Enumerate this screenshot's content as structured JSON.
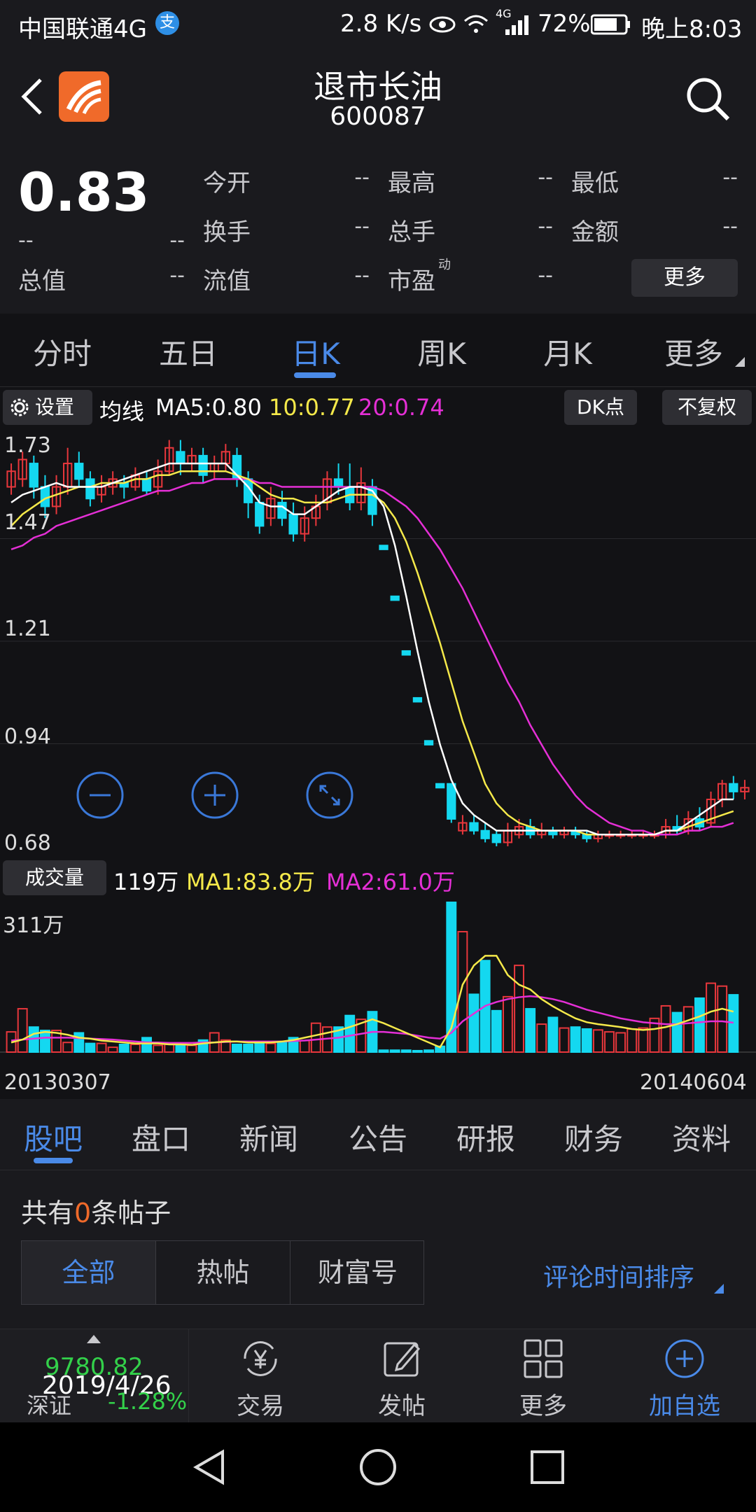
{
  "status_bar": {
    "carrier": "中国联通4G",
    "speed": "2.8 K/s",
    "network": "4G",
    "battery": "72%",
    "time": "晚上8:03"
  },
  "header": {
    "title": "退市长油",
    "code": "600087"
  },
  "quote": {
    "price": "0.83",
    "change": "--",
    "change_pct": "--",
    "total_value_label": "总值",
    "total_value": "--",
    "fields": [
      {
        "label": "今开",
        "value": "--"
      },
      {
        "label": "最高",
        "value": "--"
      },
      {
        "label": "最低",
        "value": "--"
      },
      {
        "label": "换手",
        "value": "--"
      },
      {
        "label": "总手",
        "value": "--"
      },
      {
        "label": "金额",
        "value": "--"
      },
      {
        "label": "流值",
        "value": "--"
      },
      {
        "label": "市盈",
        "value": "--",
        "superscript": "动"
      }
    ],
    "more_button": "更多"
  },
  "chart_tabs": {
    "items": [
      "分时",
      "五日",
      "日K",
      "周K",
      "月K",
      "更多"
    ],
    "active": "日K"
  },
  "ma_bar": {
    "settings": "设置",
    "label": "均线",
    "ma5": "MA5:0.80",
    "ma10": "10:0.77",
    "ma20": "20:0.74",
    "dk_button": "DK点",
    "fq_button": "不复权"
  },
  "volume_bar": {
    "label": "成交量",
    "vol": "119万",
    "ma1": "MA1:83.8万",
    "ma2": "MA2:61.0万"
  },
  "colors": {
    "up": "#e8373c",
    "down": "#14d8f0",
    "ma5": "#ffffff",
    "ma10": "#f5e94a",
    "ma20": "#e52fd6",
    "accent": "#4a8ae8"
  },
  "chart_data": {
    "type": "candlestick",
    "y_ticks": [
      "1.73",
      "1.47",
      "1.21",
      "0.94",
      "0.68"
    ],
    "ylim": [
      0.68,
      1.73
    ],
    "volume_max_label": "311万",
    "x_start": "20130307",
    "x_end": "20140604",
    "candles": [
      [
        1.6,
        1.64,
        1.58,
        1.66
      ],
      [
        1.62,
        1.67,
        1.6,
        1.69
      ],
      [
        1.66,
        1.6,
        1.57,
        1.68
      ],
      [
        1.6,
        1.55,
        1.52,
        1.63
      ],
      [
        1.55,
        1.6,
        1.53,
        1.63
      ],
      [
        1.6,
        1.66,
        1.58,
        1.7
      ],
      [
        1.66,
        1.62,
        1.6,
        1.69
      ],
      [
        1.62,
        1.57,
        1.55,
        1.64
      ],
      [
        1.58,
        1.6,
        1.56,
        1.63
      ],
      [
        1.6,
        1.62,
        1.58,
        1.64
      ],
      [
        1.61,
        1.6,
        1.57,
        1.63
      ],
      [
        1.6,
        1.63,
        1.59,
        1.65
      ],
      [
        1.62,
        1.59,
        1.58,
        1.64
      ],
      [
        1.6,
        1.64,
        1.58,
        1.67
      ],
      [
        1.64,
        1.7,
        1.63,
        1.72
      ],
      [
        1.69,
        1.66,
        1.63,
        1.72
      ],
      [
        1.66,
        1.68,
        1.64,
        1.7
      ],
      [
        1.68,
        1.63,
        1.61,
        1.7
      ],
      [
        1.64,
        1.66,
        1.62,
        1.68
      ],
      [
        1.66,
        1.69,
        1.64,
        1.71
      ],
      [
        1.68,
        1.62,
        1.6,
        1.7
      ],
      [
        1.62,
        1.56,
        1.52,
        1.64
      ],
      [
        1.56,
        1.5,
        1.48,
        1.58
      ],
      [
        1.52,
        1.57,
        1.5,
        1.6
      ],
      [
        1.56,
        1.52,
        1.5,
        1.59
      ],
      [
        1.53,
        1.48,
        1.46,
        1.56
      ],
      [
        1.48,
        1.52,
        1.46,
        1.55
      ],
      [
        1.52,
        1.55,
        1.5,
        1.58
      ],
      [
        1.56,
        1.62,
        1.54,
        1.64
      ],
      [
        1.62,
        1.6,
        1.58,
        1.66
      ],
      [
        1.6,
        1.56,
        1.54,
        1.66
      ],
      [
        1.56,
        1.61,
        1.54,
        1.65
      ],
      [
        1.6,
        1.53,
        1.5,
        1.62
      ],
      [
        1.45,
        1.44,
        1.44,
        1.45
      ],
      [
        1.32,
        1.31,
        1.31,
        1.32
      ],
      [
        1.18,
        1.17,
        1.17,
        1.18
      ],
      [
        1.06,
        1.05,
        1.05,
        1.06
      ],
      [
        0.95,
        0.94,
        0.94,
        0.95
      ],
      [
        0.84,
        0.83,
        0.83,
        0.84
      ],
      [
        0.84,
        0.75,
        0.74,
        0.84
      ],
      [
        0.72,
        0.74,
        0.71,
        0.76
      ],
      [
        0.74,
        0.72,
        0.71,
        0.76
      ],
      [
        0.72,
        0.7,
        0.69,
        0.74
      ],
      [
        0.71,
        0.69,
        0.68,
        0.72
      ],
      [
        0.69,
        0.72,
        0.68,
        0.74
      ],
      [
        0.71,
        0.73,
        0.7,
        0.75
      ],
      [
        0.73,
        0.71,
        0.7,
        0.75
      ],
      [
        0.71,
        0.72,
        0.7,
        0.74
      ],
      [
        0.72,
        0.71,
        0.7,
        0.73
      ],
      [
        0.71,
        0.72,
        0.7,
        0.73
      ],
      [
        0.72,
        0.71,
        0.7,
        0.73
      ],
      [
        0.71,
        0.7,
        0.69,
        0.72
      ],
      [
        0.7,
        0.71,
        0.69,
        0.72
      ],
      [
        0.71,
        0.71,
        0.7,
        0.72
      ],
      [
        0.71,
        0.71,
        0.7,
        0.72
      ],
      [
        0.71,
        0.71,
        0.7,
        0.72
      ],
      [
        0.71,
        0.71,
        0.7,
        0.72
      ],
      [
        0.71,
        0.71,
        0.7,
        0.72
      ],
      [
        0.71,
        0.73,
        0.7,
        0.75
      ],
      [
        0.73,
        0.72,
        0.71,
        0.76
      ],
      [
        0.72,
        0.75,
        0.71,
        0.77
      ],
      [
        0.75,
        0.73,
        0.72,
        0.78
      ],
      [
        0.74,
        0.8,
        0.73,
        0.82
      ],
      [
        0.8,
        0.84,
        0.78,
        0.85
      ],
      [
        0.84,
        0.82,
        0.8,
        0.86
      ],
      [
        0.82,
        0.83,
        0.8,
        0.85
      ]
    ],
    "volume": [
      42,
      90,
      52,
      45,
      45,
      20,
      40,
      18,
      18,
      10,
      16,
      16,
      30,
      14,
      16,
      16,
      14,
      25,
      40,
      25,
      16,
      16,
      20,
      18,
      22,
      30,
      24,
      60,
      52,
      52,
      76,
      68,
      84,
      4,
      4,
      4,
      3,
      4,
      12,
      311,
      250,
      120,
      190,
      86,
      115,
      180,
      90,
      58,
      72,
      50,
      52,
      48,
      46,
      42,
      40,
      48,
      50,
      70,
      96,
      82,
      94,
      112,
      143,
      137,
      119
    ],
    "ma5": [
      1.56,
      1.58,
      1.59,
      1.6,
      1.61,
      1.6,
      1.6,
      1.6,
      1.6,
      1.61,
      1.62,
      1.63,
      1.64,
      1.65,
      1.66,
      1.66,
      1.66,
      1.66,
      1.66,
      1.66,
      1.63,
      1.6,
      1.56,
      1.55,
      1.55,
      1.53,
      1.53,
      1.55,
      1.57,
      1.59,
      1.6,
      1.6,
      1.59,
      1.55,
      1.45,
      1.32,
      1.18,
      1.05,
      0.94,
      0.85,
      0.79,
      0.76,
      0.74,
      0.72,
      0.72,
      0.72,
      0.72,
      0.72,
      0.72,
      0.72,
      0.72,
      0.72,
      0.71,
      0.71,
      0.71,
      0.71,
      0.71,
      0.71,
      0.72,
      0.72,
      0.74,
      0.76,
      0.78,
      0.8,
      0.8
    ],
    "ma10": [
      1.5,
      1.53,
      1.55,
      1.57,
      1.58,
      1.59,
      1.6,
      1.6,
      1.61,
      1.61,
      1.61,
      1.62,
      1.62,
      1.63,
      1.63,
      1.64,
      1.64,
      1.64,
      1.64,
      1.64,
      1.63,
      1.62,
      1.6,
      1.58,
      1.57,
      1.57,
      1.56,
      1.56,
      1.56,
      1.57,
      1.58,
      1.58,
      1.58,
      1.56,
      1.52,
      1.46,
      1.38,
      1.29,
      1.2,
      1.1,
      1.0,
      0.92,
      0.84,
      0.79,
      0.76,
      0.74,
      0.73,
      0.72,
      0.72,
      0.72,
      0.72,
      0.71,
      0.71,
      0.71,
      0.71,
      0.71,
      0.71,
      0.71,
      0.72,
      0.72,
      0.73,
      0.74,
      0.75,
      0.76,
      0.77
    ],
    "ma20": [
      1.44,
      1.45,
      1.47,
      1.48,
      1.5,
      1.51,
      1.52,
      1.53,
      1.54,
      1.55,
      1.56,
      1.57,
      1.58,
      1.59,
      1.59,
      1.6,
      1.61,
      1.61,
      1.62,
      1.62,
      1.62,
      1.62,
      1.61,
      1.61,
      1.6,
      1.6,
      1.6,
      1.6,
      1.6,
      1.6,
      1.6,
      1.6,
      1.6,
      1.59,
      1.57,
      1.55,
      1.52,
      1.48,
      1.44,
      1.39,
      1.34,
      1.28,
      1.22,
      1.16,
      1.1,
      1.05,
      0.99,
      0.94,
      0.89,
      0.85,
      0.81,
      0.78,
      0.76,
      0.74,
      0.73,
      0.72,
      0.72,
      0.71,
      0.71,
      0.71,
      0.72,
      0.72,
      0.73,
      0.73,
      0.74
    ],
    "vol_ma1": [
      20,
      26,
      38,
      42,
      40,
      36,
      30,
      28,
      24,
      22,
      20,
      18,
      18,
      18,
      16,
      16,
      15,
      18,
      20,
      22,
      22,
      20,
      20,
      20,
      22,
      25,
      30,
      35,
      40,
      45,
      52,
      60,
      68,
      60,
      50,
      40,
      30,
      20,
      10,
      50,
      140,
      180,
      200,
      200,
      160,
      140,
      130,
      110,
      95,
      82,
      70,
      62,
      58,
      55,
      52,
      48,
      46,
      48,
      52,
      58,
      66,
      74,
      84,
      90,
      84
    ],
    "vol_ma2": [
      24,
      26,
      28,
      30,
      30,
      30,
      29,
      28,
      27,
      26,
      24,
      22,
      20,
      20,
      19,
      19,
      19,
      20,
      20,
      21,
      22,
      22,
      22,
      22,
      22,
      23,
      24,
      26,
      28,
      30,
      34,
      38,
      42,
      42,
      40,
      38,
      34,
      30,
      28,
      40,
      64,
      80,
      96,
      104,
      110,
      114,
      116,
      114,
      110,
      104,
      96,
      88,
      82,
      76,
      70,
      66,
      62,
      60,
      58,
      58,
      60,
      62,
      64,
      64,
      61
    ]
  },
  "zoom_controls": [
    "zoom-out",
    "zoom-in",
    "fullscreen"
  ],
  "content_tabs": {
    "items": [
      "股吧",
      "盘口",
      "新闻",
      "公告",
      "研报",
      "财务",
      "资料"
    ],
    "active": "股吧"
  },
  "posts": {
    "prefix": "共有",
    "count": "0",
    "suffix": "条帖子",
    "filters": [
      "全部",
      "热帖",
      "财富号"
    ],
    "active_filter": "全部",
    "sort": "评论时间排序"
  },
  "bottom_bar": {
    "index_value": "9780.82",
    "index_date": "2019/4/26",
    "index_name": "深证",
    "index_change": "-1.28%",
    "items": [
      "交易",
      "发帖",
      "更多",
      "加自选"
    ]
  }
}
